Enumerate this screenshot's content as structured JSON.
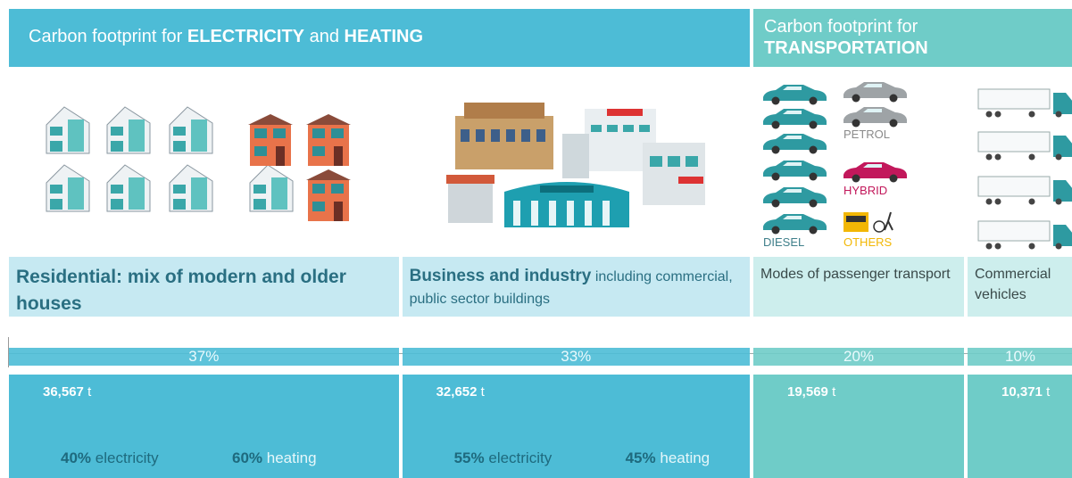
{
  "header": {
    "electricity_heating": {
      "prefix": "Carbon footprint for",
      "bold1": "ELECTRICITY",
      "mid": "and",
      "bold2": "HEATING"
    },
    "transportation": {
      "line1": "Carbon footprint for",
      "line2": "TRANSPORTATION"
    }
  },
  "car_labels": {
    "petrol": "PETROL",
    "hybrid": "HYBRID",
    "diesel": "DIESEL",
    "others": "OTHERS"
  },
  "sectors": [
    {
      "title_bold": "Residential: mix of modern and older houses",
      "share": {
        "value": 37,
        "label": "37%"
      },
      "co2": {
        "value": 36567,
        "label": "36,567"
      },
      "unit": "t",
      "electricity": {
        "value": 40,
        "label": "40%"
      },
      "electricity_text": "electricity",
      "heating": {
        "value": 60,
        "label": "60%"
      },
      "heating_text": "heating"
    },
    {
      "title_bold": "Business and industry",
      "title": "including commercial, public sector buildings",
      "share": {
        "value": 33,
        "label": "33%"
      },
      "co2": {
        "value": 32652,
        "label": "32,652"
      },
      "unit": "t",
      "electricity": {
        "value": 55,
        "label": "55%"
      },
      "electricity_text": "electricity",
      "heating": {
        "value": 45,
        "label": "45%"
      },
      "heating_text": "heating"
    },
    {
      "title": "Modes of passenger transport",
      "share": {
        "value": 20,
        "label": "20%"
      },
      "co2": {
        "value": 19569,
        "label": "19,569"
      },
      "unit": "t"
    },
    {
      "title": "Commercial vehicles",
      "share": {
        "value": 10,
        "label": "10%"
      },
      "co2": {
        "value": 10371,
        "label": "10,371"
      },
      "unit": "t"
    }
  ]
}
